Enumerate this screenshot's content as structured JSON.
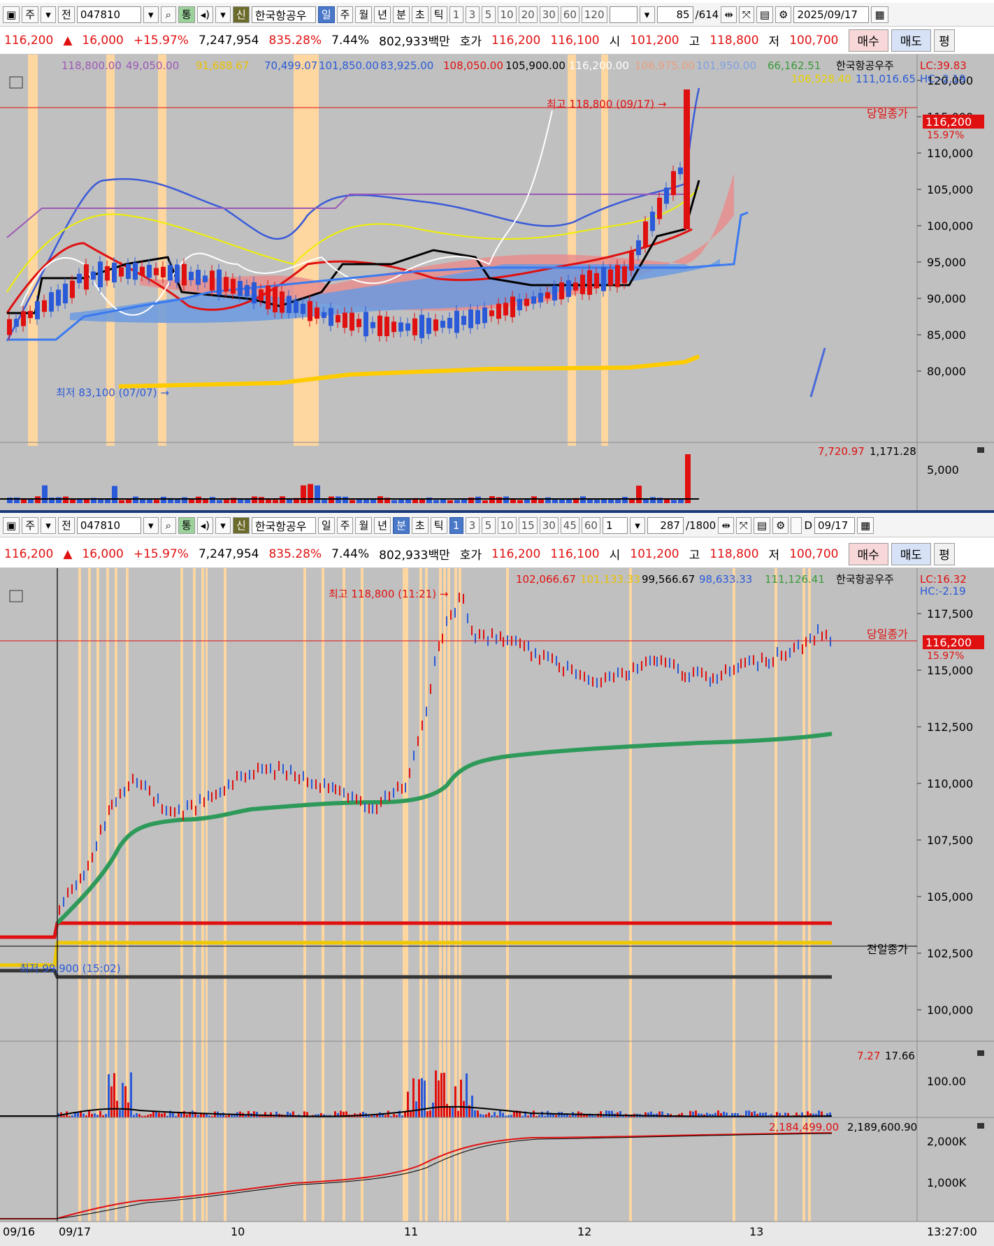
{
  "colors": {
    "up": "#e01010",
    "down": "#2a5ad8",
    "bg": "#c0c0c0",
    "highlight": "#fdd6a0"
  },
  "top": {
    "toolbar": {
      "type": "주",
      "prev": "전",
      "code": "047810",
      "mini": "통",
      "credit": "신",
      "name": "한국항공우",
      "periods": [
        "일",
        "주",
        "월",
        "년",
        "분",
        "초",
        "틱"
      ],
      "selected": "일",
      "numbers": [
        "1",
        "3",
        "5",
        "10",
        "20",
        "30",
        "60",
        "120"
      ],
      "count": "85",
      "total": "/614",
      "date": "2025/09/17"
    },
    "quote": {
      "price": "116,200",
      "arrow": "▲",
      "change": "16,000",
      "pct": "+15.97%",
      "volume": "7,247,954",
      "ratio": "835.28%",
      "turnover": "7.44%",
      "amount": "802,933백만",
      "bid_label": "호가",
      "ask": "116,200",
      "bid": "116,100",
      "open_label": "시",
      "open": "101,200",
      "high_label": "고",
      "high": "118,800",
      "low_label": "저",
      "low": "100,700",
      "buy": "매수",
      "sell": "매도",
      "even": "평"
    },
    "legend": [
      "118,800.00",
      "49,050.00",
      "91,688.67",
      "70,499.07",
      "101,850.00",
      "83,925.00",
      "108,050.00",
      "105,900.00",
      "116,200.00",
      "106,975.00",
      "101,950.00",
      "66,162.51"
    ],
    "legend2": [
      "106,528.40",
      "111,016.65"
    ],
    "stock_name": "한국항공우주",
    "lc": "LC:39.83",
    "hc": "HC:-2.19",
    "high_note": "최고 118,800 (09/17) →",
    "low_note": "최저 83,100 (07/07) →",
    "close_label": "당일종가",
    "last_price": "116,200",
    "last_pct": "15.97%",
    "axis": [
      "120,000",
      "115,000",
      "110,000",
      "105,000",
      "100,000",
      "95,000",
      "90,000",
      "85,000",
      "80,000"
    ],
    "vol_legend": [
      "7,720.97",
      "1,171.28"
    ],
    "vol_axis": "5,000"
  },
  "bottom": {
    "toolbar": {
      "type": "주",
      "prev": "전",
      "code": "047810",
      "mini": "통",
      "credit": "신",
      "name": "한국항공우",
      "periods": [
        "일",
        "주",
        "월",
        "년",
        "분",
        "초",
        "틱"
      ],
      "selected": "분",
      "numbers": [
        "1",
        "3",
        "5",
        "10",
        "15",
        "30",
        "45",
        "60"
      ],
      "selected_num": "1",
      "step": "1",
      "count": "287",
      "total": "/1800",
      "dlabel": "D",
      "date": "09/17"
    },
    "legend": [
      "102,066.67",
      "101,133.33",
      "99,566.67",
      "98,633.33",
      "111,126.41"
    ],
    "stock_name": "한국항공우주",
    "lc": "LC:16.32",
    "hc": "HC:-2.19",
    "high_note": "최고 118,800 (11:21) →",
    "low_note": "최저 99,900 (15:02)",
    "close_label": "당일종가",
    "prev_close": "전일종가",
    "last_price": "116,200",
    "last_pct": "15.97%",
    "axis": [
      "117,500",
      "115,000",
      "112,500",
      "110,000",
      "107,500",
      "105,000",
      "102,500",
      "100,000"
    ],
    "vol_legend": [
      "7.27",
      "17.66"
    ],
    "vol_axis": "100.00",
    "amt_legend": [
      "2,184,499.00",
      "2,189,600.90"
    ],
    "amt_axis": [
      "2,000K",
      "1,000K"
    ],
    "xaxis": [
      "09/16",
      "09/17",
      "10",
      "11",
      "12",
      "13"
    ],
    "time": "13:27:00"
  }
}
